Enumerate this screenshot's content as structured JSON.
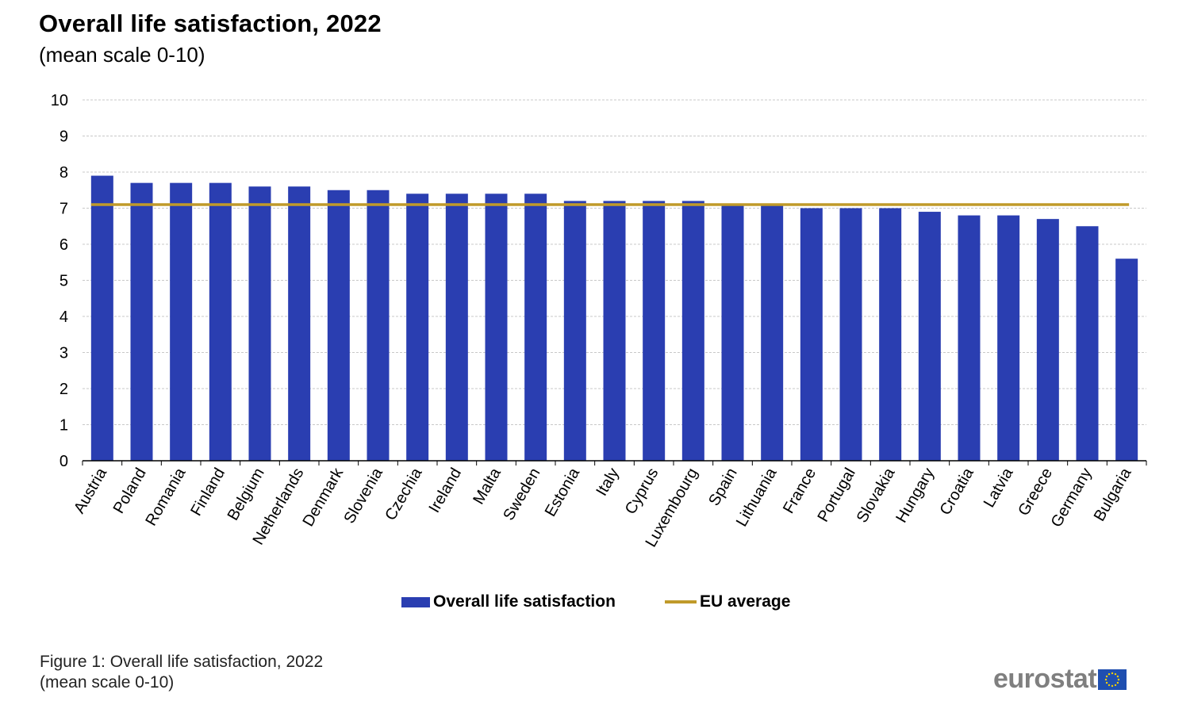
{
  "chart_data": {
    "type": "bar",
    "title": "Overall life satisfaction, 2022",
    "subtitle": "(mean scale 0-10)",
    "xlabel": "",
    "ylabel": "",
    "ylim": [
      0,
      10
    ],
    "yticks": [
      0,
      1,
      2,
      3,
      4,
      5,
      6,
      7,
      8,
      9,
      10
    ],
    "grid": true,
    "categories": [
      "Austria",
      "Poland",
      "Romania",
      "Finland",
      "Belgium",
      "Netherlands",
      "Denmark",
      "Slovenia",
      "Czechia",
      "Ireland",
      "Malta",
      "Sweden",
      "Estonia",
      "Italy",
      "Cyprus",
      "Luxembourg",
      "Spain",
      "Lithuania",
      "France",
      "Portugal",
      "Slovakia",
      "Hungary",
      "Croatia",
      "Latvia",
      "Greece",
      "Germany",
      "Bulgaria"
    ],
    "series": [
      {
        "name": "Overall life satisfaction",
        "type": "bar",
        "color": "#2a3eb1",
        "values": [
          7.9,
          7.7,
          7.7,
          7.7,
          7.6,
          7.6,
          7.5,
          7.5,
          7.4,
          7.4,
          7.4,
          7.4,
          7.2,
          7.2,
          7.2,
          7.2,
          7.1,
          7.1,
          7.0,
          7.0,
          7.0,
          6.9,
          6.8,
          6.8,
          6.7,
          6.5,
          5.6
        ]
      },
      {
        "name": "EU average",
        "type": "line",
        "color": "#c09a2a",
        "value": 7.1
      }
    ],
    "legend_position": "bottom"
  },
  "footer": {
    "line1": "Figure 1: Overall life satisfaction, 2022",
    "line2": "(mean scale 0-10)"
  },
  "logo": {
    "text": "eurostat"
  }
}
